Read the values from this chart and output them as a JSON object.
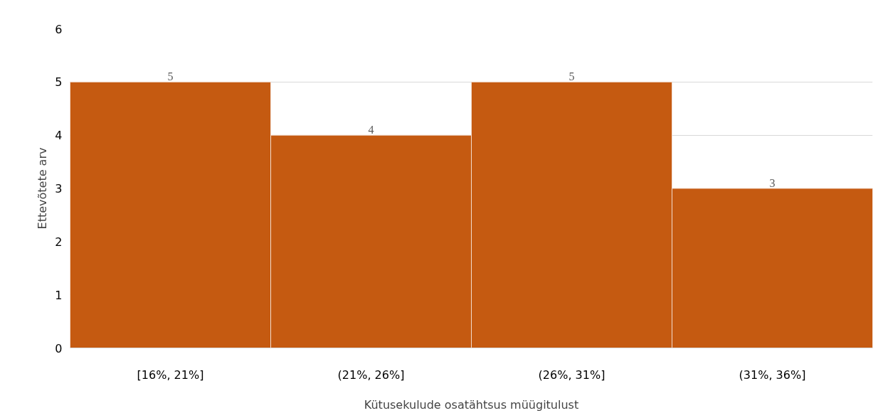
{
  "chart_data": {
    "type": "bar",
    "xlabel": "Kütusekulude osatähtsus müügitulust",
    "ylabel": "Ettevõtete arv",
    "categories": [
      "[16%, 21%]",
      "(21%, 26%]",
      "(26%, 31%]",
      "(31%, 36%]"
    ],
    "values": [
      5,
      4,
      5,
      3
    ],
    "color": "#c55a11",
    "ylim": [
      0,
      6
    ],
    "yticks": [
      0,
      1,
      2,
      3,
      4,
      5,
      6
    ],
    "grid": "y",
    "data_labels": true
  }
}
